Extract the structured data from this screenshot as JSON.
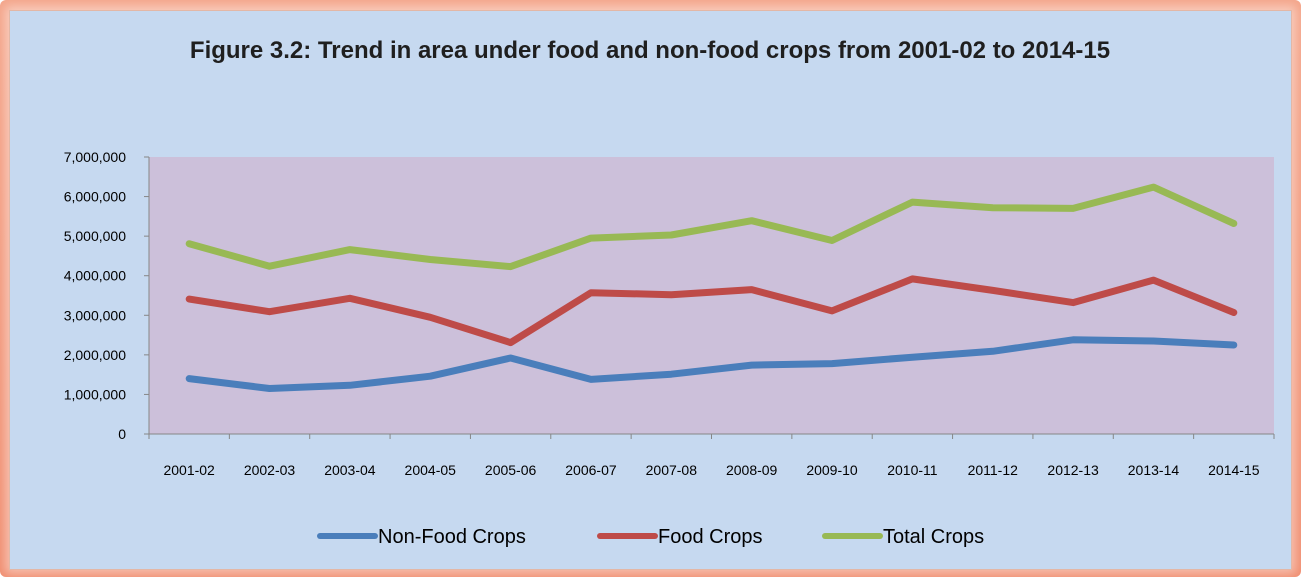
{
  "chart_data": {
    "type": "line",
    "title": "Figure 3.2: Trend in area under food and non-food crops from 2001-02 to 2014-15",
    "xlabel": "",
    "ylabel": "",
    "ylim": [
      0,
      7000000
    ],
    "y_ticks": [
      "0",
      "1,000,000",
      "2,000,000",
      "3,000,000",
      "4,000,000",
      "5,000,000",
      "6,000,000",
      "7,000,000"
    ],
    "categories": [
      "2001-02",
      "2002-03",
      "2003-04",
      "2004-05",
      "2005-06",
      "2006-07",
      "2007-08",
      "2008-09",
      "2009-10",
      "2010-11",
      "2011-12",
      "2012-13",
      "2013-14",
      "2014-15"
    ],
    "grid": false,
    "legend_position": "bottom",
    "series": [
      {
        "name": "Non-Food Crops",
        "color": "#4a7ebb",
        "values": [
          1400000,
          1150000,
          1230000,
          1460000,
          1920000,
          1380000,
          1510000,
          1740000,
          1780000,
          1940000,
          2090000,
          2380000,
          2350000,
          2250000
        ]
      },
      {
        "name": "Food Crops",
        "color": "#be4b48",
        "values": [
          3410000,
          3090000,
          3430000,
          2950000,
          2310000,
          3570000,
          3520000,
          3650000,
          3110000,
          3920000,
          3630000,
          3320000,
          3890000,
          3070000
        ]
      },
      {
        "name": "Total Crops",
        "color": "#98b954",
        "values": [
          4810000,
          4240000,
          4660000,
          4410000,
          4230000,
          4950000,
          5030000,
          5390000,
          4890000,
          5860000,
          5720000,
          5700000,
          6240000,
          5320000
        ]
      }
    ],
    "colors": {
      "plot_background": "#ccc0da",
      "panel_background": "#c6d9f0",
      "frame": "#f08c6e",
      "text": "#000000",
      "title_text": "#1f1f1f"
    }
  }
}
